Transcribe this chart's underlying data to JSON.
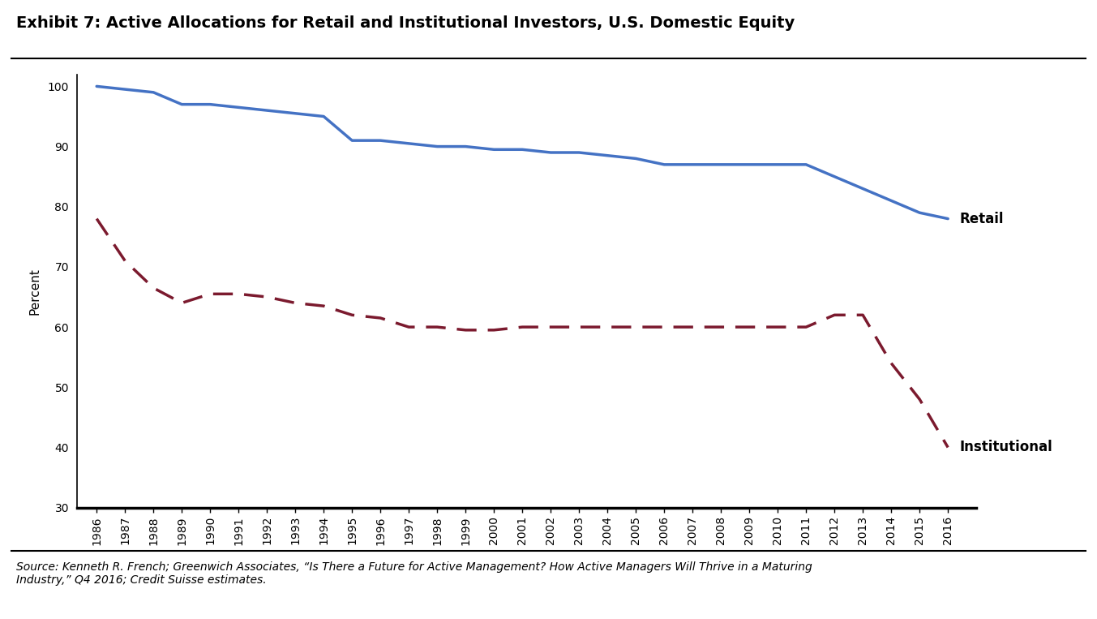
{
  "title": "Exhibit 7: Active Allocations for Retail and Institutional Investors, U.S. Domestic Equity",
  "ylabel": "Percent",
  "source": "Source: Kenneth R. French; Greenwich Associates, “Is There a Future for Active Management? How Active Managers Will Thrive in a Maturing\nIndustry,” Q4 2016; Credit Suisse estimates.",
  "years": [
    1986,
    1987,
    1988,
    1989,
    1990,
    1991,
    1992,
    1993,
    1994,
    1995,
    1996,
    1997,
    1998,
    1999,
    2000,
    2001,
    2002,
    2003,
    2004,
    2005,
    2006,
    2007,
    2008,
    2009,
    2010,
    2011,
    2012,
    2013,
    2014,
    2015,
    2016
  ],
  "retail": [
    100,
    99.5,
    99,
    97,
    97,
    96.5,
    96,
    95.5,
    95,
    91,
    91,
    90.5,
    90,
    90,
    89.5,
    89.5,
    89,
    89,
    88.5,
    88,
    87,
    87,
    87,
    87,
    87,
    87,
    85,
    83,
    81,
    79,
    78
  ],
  "institutional": [
    78,
    71,
    66.5,
    64,
    65.5,
    65.5,
    65,
    64,
    63.5,
    62,
    61.5,
    60,
    60,
    59.5,
    59.5,
    60,
    60,
    60,
    60,
    60,
    60,
    60,
    60,
    60,
    60,
    60,
    62,
    62,
    54,
    48,
    40
  ],
  "retail_color": "#4472C4",
  "institutional_color": "#7B1A2E",
  "ylim": [
    30,
    102
  ],
  "yticks": [
    30,
    40,
    50,
    60,
    70,
    80,
    90,
    100
  ],
  "background_color": "#FFFFFF",
  "title_fontsize": 14,
  "label_fontsize": 11,
  "tick_fontsize": 10,
  "annotation_fontsize": 12,
  "source_fontsize": 10
}
